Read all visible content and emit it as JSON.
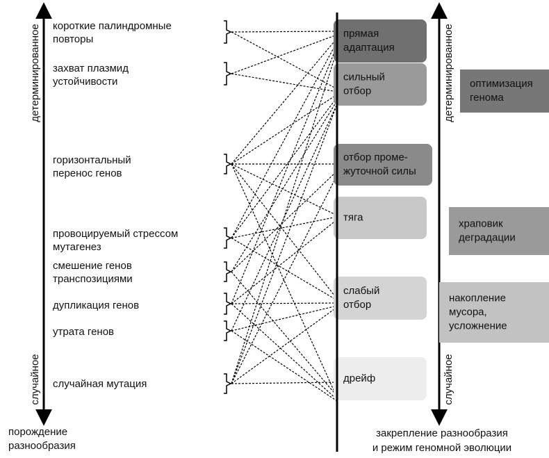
{
  "left_axis": {
    "top": "детерминированное",
    "bottom": "случайное",
    "caption": [
      "порождение",
      "разнообразия"
    ]
  },
  "mechanisms": [
    {
      "lines": [
        "короткие палиндромные",
        "повторы"
      ]
    },
    {
      "lines": [
        "захват плазмид",
        "устойчивости"
      ]
    },
    {
      "lines": [
        "горизонтальный",
        "перенос генов"
      ]
    },
    {
      "lines": [
        "провоцируемый стрессом",
        "мутагенез"
      ]
    },
    {
      "lines": [
        "смешение генов",
        "транспозициями"
      ]
    },
    {
      "lines": [
        "дупликация генов"
      ]
    },
    {
      "lines": [
        "утрата генов"
      ]
    },
    {
      "lines": [
        "случайная мутация"
      ]
    }
  ],
  "regimes": [
    {
      "lines": [
        "прямая",
        "адаптация"
      ]
    },
    {
      "lines": [
        "сильный",
        "отбор"
      ]
    },
    {
      "lines": [
        "отбор проме-",
        "жуточной силы"
      ]
    },
    {
      "lines": [
        "тяга"
      ]
    },
    {
      "lines": [
        "слабый",
        "отбор"
      ]
    },
    {
      "lines": [
        "дрейф"
      ]
    }
  ],
  "right_axis": {
    "top": "детерминированное",
    "bottom": "случайное",
    "caption": [
      "закрепление разнообразия",
      "и режим геномной эволюции"
    ]
  },
  "outcomes": [
    {
      "lines": [
        "оптимизация",
        "генома"
      ]
    },
    {
      "lines": [
        "храповик",
        "деградации"
      ]
    },
    {
      "lines": [
        "накопление",
        "мусора,",
        "усложнение"
      ]
    }
  ]
}
